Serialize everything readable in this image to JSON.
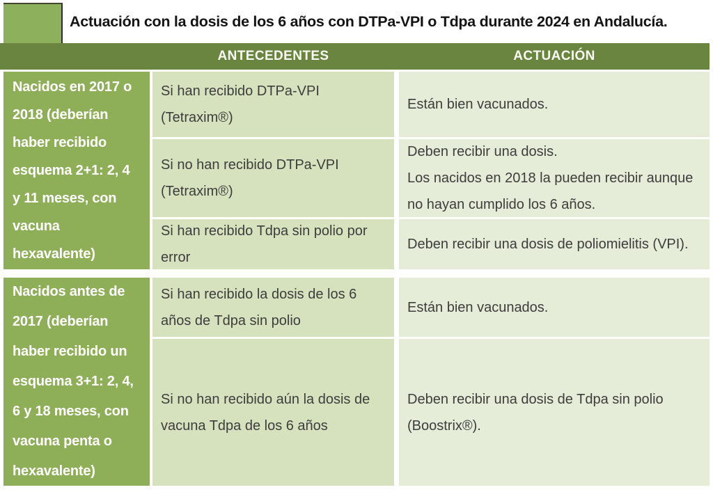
{
  "title": "Actuación con la dosis de los 6 años con DTPa-VPI o Tdpa durante 2024 en Andalucía.",
  "columns": {
    "antecedentes": "ANTECEDENTES",
    "actuacion": "ACTUACIÓN"
  },
  "groups": [
    {
      "header": "Nacidos en 2017 o\n2018 (deberían\nhaber recibido\nesquema 2+1: 2, 4\ny 11 meses, con\nvacuna\nhexavalente)",
      "rows": [
        {
          "antecedente": "Si han recibido DTPa-VPI\n(Tetraxim®)",
          "actuacion": "Están bien vacunados."
        },
        {
          "antecedente": "Si no han recibido DTPa-VPI\n(Tetraxim®)",
          "actuacion": "Deben recibir una dosis.\nLos nacidos en 2018 la pueden recibir aunque\nno hayan cumplido los 6 años."
        },
        {
          "antecedente": "Si han recibido Tdpa sin polio por\nerror",
          "actuacion": "Deben recibir una dosis de poliomielitis (VPI)."
        }
      ]
    },
    {
      "header": "Nacidos antes de\n2017 (deberían\nhaber recibido un\nesquema 3+1: 2, 4,\n6 y 18 meses, con\nvacuna penta o\nhexavalente)",
      "rows": [
        {
          "antecedente": "Si han recibido la dosis de los 6\naños de Tdpa sin polio",
          "actuacion": "Están bien vacunados."
        },
        {
          "antecedente": "Si no han recibido aún la dosis de\nvacuna Tdpa de los 6 años",
          "actuacion": "Deben recibir una dosis de Tdpa sin polio\n(Boostrix®)."
        }
      ]
    }
  ],
  "colors": {
    "header_bg": "#698540",
    "rowheader_bg": "#8fae58",
    "square_bg": "#8db05c",
    "antecedentes_bg": "#d6e2bd",
    "actuacion_bg": "#e5ecd7",
    "title_text": "#141414",
    "cell_text": "#3d3d3d",
    "header_text": "#fafbf2"
  }
}
